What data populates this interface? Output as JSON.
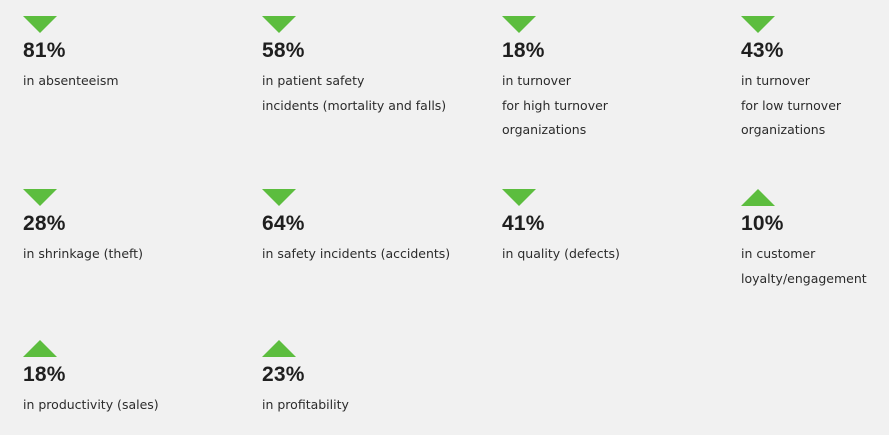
{
  "stats": [
    {
      "direction": "down",
      "value": "81%",
      "description": "in absenteeism"
    },
    {
      "direction": "down",
      "value": "58%",
      "description": "in patient safety\nincidents (mortality and falls)"
    },
    {
      "direction": "down",
      "value": "18%",
      "description": "in turnover\nfor high turnover\norganizations"
    },
    {
      "direction": "down",
      "value": "43%",
      "description": "in turnover\nfor low turnover\norganizations"
    },
    {
      "direction": "down",
      "value": "28%",
      "description": "in shrinkage (theft)"
    },
    {
      "direction": "down",
      "value": "64%",
      "description": "in safety incidents (accidents)"
    },
    {
      "direction": "down",
      "value": "41%",
      "description": "in quality (defects)"
    },
    {
      "direction": "up",
      "value": "10%",
      "description": "in customer\nloyalty/engagement"
    },
    {
      "direction": "up",
      "value": "18%",
      "description": "in productivity (sales)"
    },
    {
      "direction": "up",
      "value": "23%",
      "description": "in profitability"
    }
  ],
  "colors": {
    "arrow": "#5cbd3e",
    "background": "#f1f1f1",
    "text": "#222222"
  },
  "icons": {
    "down": "triangle-down-icon",
    "up": "triangle-up-icon"
  }
}
